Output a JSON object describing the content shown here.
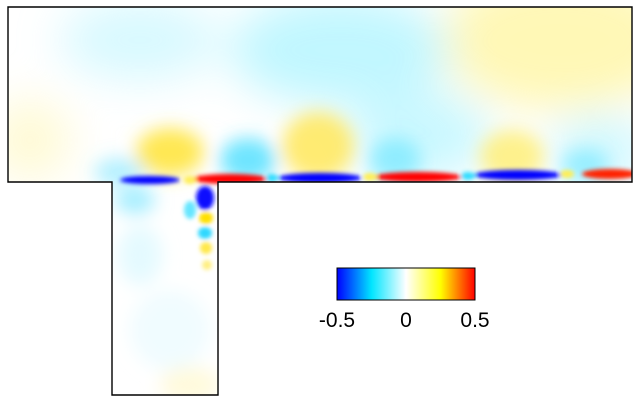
{
  "colorbar": {
    "ticks": [
      {
        "value": -0.5,
        "label": "-0.5"
      },
      {
        "value": 0,
        "label": "0"
      },
      {
        "value": 0.5,
        "label": "0.5"
      }
    ],
    "range": [
      -0.5,
      0.5
    ],
    "colors": [
      "#0000ff",
      "#00e5ff",
      "#ffffff",
      "#ffff00",
      "#ff0000"
    ]
  },
  "field": {
    "colors": {
      "positive_strong": "#ff0000",
      "positive_weak": "#ffee55",
      "negative_strong": "#0000ff",
      "negative_weak": "#33ddff"
    }
  }
}
